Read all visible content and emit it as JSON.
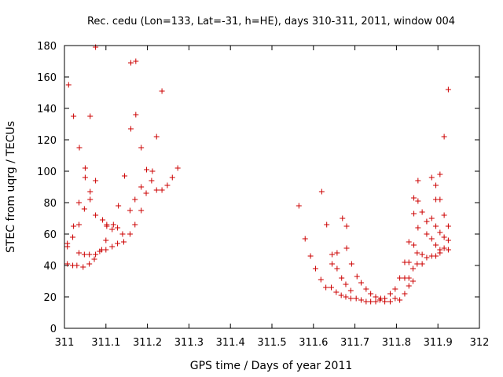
{
  "chart_data": {
    "type": "scatter",
    "title": "Rec. cedu (Lon=133, Lat=-31, h=HE), days 310-311, 2011, window 004",
    "xlabel": "GPS time / Days of year 2011",
    "ylabel": "STEC from uqrg / TECUs",
    "xlim": [
      311,
      312
    ],
    "ylim": [
      0,
      180
    ],
    "xticks": [
      311,
      311.1,
      311.2,
      311.3,
      311.4,
      311.5,
      311.6,
      311.7,
      311.8,
      311.9,
      312
    ],
    "xtick_labels": [
      "311",
      "311.1",
      "311.2",
      "311.3",
      "311.4",
      "311.5",
      "311.6",
      "311.7",
      "311.8",
      "311.9",
      "312"
    ],
    "yticks": [
      0,
      20,
      40,
      60,
      80,
      100,
      120,
      140,
      160,
      180
    ],
    "ytick_labels": [
      "0",
      "20",
      "40",
      "60",
      "80",
      "100",
      "120",
      "140",
      "160",
      "180"
    ],
    "grid": false,
    "marker": "+",
    "marker_color": "#cc0000",
    "series": [
      {
        "points": [
          [
            311.007,
            41
          ],
          [
            311.007,
            52
          ],
          [
            311.007,
            54
          ],
          [
            311.01,
            155
          ],
          [
            311.02,
            40
          ],
          [
            311.02,
            58
          ],
          [
            311.022,
            65
          ],
          [
            311.022,
            135
          ],
          [
            311.03,
            40
          ],
          [
            311.035,
            48
          ],
          [
            311.035,
            66
          ],
          [
            311.035,
            80
          ],
          [
            311.036,
            115
          ],
          [
            311.045,
            39
          ],
          [
            311.048,
            47
          ],
          [
            311.048,
            76
          ],
          [
            311.05,
            96
          ],
          [
            311.05,
            102
          ],
          [
            311.06,
            41
          ],
          [
            311.06,
            47
          ],
          [
            311.062,
            82
          ],
          [
            311.062,
            87
          ],
          [
            311.062,
            135
          ],
          [
            311.072,
            44
          ],
          [
            311.075,
            47
          ],
          [
            311.075,
            72
          ],
          [
            311.075,
            94
          ],
          [
            311.075,
            179
          ],
          [
            311.085,
            49
          ],
          [
            311.09,
            50
          ],
          [
            311.092,
            69
          ],
          [
            311.1,
            50
          ],
          [
            311.1,
            56
          ],
          [
            311.102,
            66
          ],
          [
            311.102,
            65
          ],
          [
            311.115,
            52
          ],
          [
            311.115,
            63
          ],
          [
            311.118,
            66
          ],
          [
            311.128,
            54
          ],
          [
            311.128,
            64
          ],
          [
            311.13,
            78
          ],
          [
            311.14,
            60
          ],
          [
            311.143,
            55
          ],
          [
            311.145,
            97
          ],
          [
            311.158,
            60
          ],
          [
            311.158,
            75
          ],
          [
            311.16,
            127
          ],
          [
            311.16,
            169
          ],
          [
            311.17,
            66
          ],
          [
            311.17,
            82
          ],
          [
            311.172,
            136
          ],
          [
            311.172,
            170
          ],
          [
            311.185,
            75
          ],
          [
            311.185,
            90
          ],
          [
            311.185,
            115
          ],
          [
            311.197,
            86
          ],
          [
            311.198,
            101
          ],
          [
            311.21,
            94
          ],
          [
            311.212,
            100
          ],
          [
            311.222,
            88
          ],
          [
            311.222,
            122
          ],
          [
            311.235,
            88
          ],
          [
            311.235,
            151
          ],
          [
            311.248,
            91
          ],
          [
            311.26,
            96
          ],
          [
            311.273,
            102
          ],
          [
            311.565,
            78
          ],
          [
            311.58,
            57
          ],
          [
            311.593,
            46
          ],
          [
            311.605,
            38
          ],
          [
            311.618,
            31
          ],
          [
            311.62,
            87
          ],
          [
            311.63,
            26
          ],
          [
            311.632,
            66
          ],
          [
            311.643,
            26
          ],
          [
            311.645,
            41
          ],
          [
            311.645,
            47
          ],
          [
            311.655,
            23
          ],
          [
            311.657,
            38
          ],
          [
            311.657,
            48
          ],
          [
            311.667,
            21
          ],
          [
            311.668,
            32
          ],
          [
            311.67,
            70
          ],
          [
            311.678,
            20
          ],
          [
            311.678,
            28
          ],
          [
            311.68,
            51
          ],
          [
            311.68,
            65
          ],
          [
            311.69,
            19
          ],
          [
            311.69,
            24
          ],
          [
            311.692,
            41
          ],
          [
            311.703,
            19
          ],
          [
            311.705,
            33
          ],
          [
            311.715,
            18
          ],
          [
            311.715,
            29
          ],
          [
            311.727,
            17
          ],
          [
            311.727,
            25
          ],
          [
            311.738,
            17
          ],
          [
            311.738,
            22
          ],
          [
            311.75,
            17
          ],
          [
            311.75,
            20
          ],
          [
            311.76,
            18
          ],
          [
            311.762,
            19
          ],
          [
            311.772,
            19
          ],
          [
            311.772,
            17
          ],
          [
            311.785,
            22
          ],
          [
            311.785,
            17
          ],
          [
            311.797,
            25
          ],
          [
            311.797,
            19
          ],
          [
            311.808,
            32
          ],
          [
            311.808,
            18
          ],
          [
            311.82,
            42
          ],
          [
            311.82,
            32
          ],
          [
            311.82,
            22
          ],
          [
            311.83,
            55
          ],
          [
            311.83,
            42
          ],
          [
            311.83,
            32
          ],
          [
            311.83,
            27
          ],
          [
            311.842,
            83
          ],
          [
            311.842,
            73
          ],
          [
            311.842,
            53
          ],
          [
            311.84,
            38
          ],
          [
            311.84,
            30
          ],
          [
            311.852,
            94
          ],
          [
            311.852,
            81
          ],
          [
            311.852,
            64
          ],
          [
            311.85,
            48
          ],
          [
            311.85,
            41
          ],
          [
            311.862,
            74
          ],
          [
            311.862,
            47
          ],
          [
            311.862,
            41
          ],
          [
            311.873,
            68
          ],
          [
            311.873,
            68
          ],
          [
            311.873,
            60
          ],
          [
            311.873,
            45
          ],
          [
            311.885,
            96
          ],
          [
            311.885,
            70
          ],
          [
            311.885,
            57
          ],
          [
            311.885,
            46
          ],
          [
            311.895,
            91
          ],
          [
            311.895,
            82
          ],
          [
            311.895,
            65
          ],
          [
            311.895,
            53
          ],
          [
            311.895,
            46
          ],
          [
            311.905,
            98
          ],
          [
            311.905,
            82
          ],
          [
            311.905,
            61
          ],
          [
            311.905,
            50
          ],
          [
            311.905,
            48
          ],
          [
            311.915,
            122
          ],
          [
            311.915,
            72
          ],
          [
            311.915,
            58
          ],
          [
            311.915,
            51
          ],
          [
            311.925,
            152
          ],
          [
            311.925,
            65
          ],
          [
            311.925,
            56
          ],
          [
            311.925,
            50
          ]
        ]
      }
    ]
  }
}
